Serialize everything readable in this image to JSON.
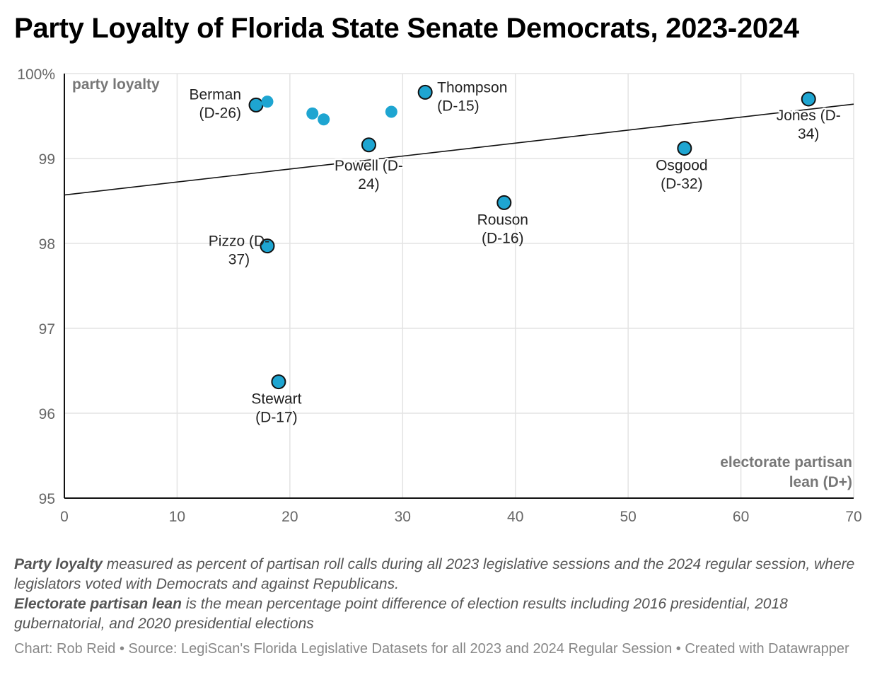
{
  "chart_data": {
    "type": "scatter",
    "title": "Party Loyalty of Florida State Senate Democrats, 2023-2024",
    "xlabel": "electorate partisan lean (D+)",
    "ylabel": "party loyalty",
    "xlim": [
      0,
      70
    ],
    "ylim": [
      95,
      100
    ],
    "x_ticks": [
      "0",
      "10",
      "20",
      "30",
      "40",
      "50",
      "60",
      "70"
    ],
    "y_ticks": [
      "95",
      "96",
      "97",
      "98",
      "99",
      "100%"
    ],
    "grid": true,
    "colors": {
      "point": "#1ea5d1",
      "outline": "#111111",
      "trend": "#111111",
      "grid": "#e3e3e3"
    },
    "points": [
      {
        "x": 17,
        "y": 99.63,
        "label": [
          "Berman",
          "(D-26)"
        ],
        "outlined": true
      },
      {
        "x": 18,
        "y": 99.67,
        "label": [],
        "outlined": false
      },
      {
        "x": 22,
        "y": 99.53,
        "label": [],
        "outlined": false
      },
      {
        "x": 23,
        "y": 99.46,
        "label": [],
        "outlined": false
      },
      {
        "x": 29,
        "y": 99.55,
        "label": [],
        "outlined": false
      },
      {
        "x": 32,
        "y": 99.78,
        "label": [
          "Thompson",
          "(D-15)"
        ],
        "outlined": true
      },
      {
        "x": 27,
        "y": 99.16,
        "label": [
          "Powell (D-",
          "24)"
        ],
        "outlined": true
      },
      {
        "x": 66,
        "y": 99.7,
        "label": [
          "Jones (D-",
          "34)"
        ],
        "outlined": true
      },
      {
        "x": 55,
        "y": 99.12,
        "label": [
          "Osgood",
          "(D-32)"
        ],
        "outlined": true
      },
      {
        "x": 39,
        "y": 98.48,
        "label": [
          "Rouson",
          "(D-16)"
        ],
        "outlined": true
      },
      {
        "x": 18,
        "y": 97.97,
        "label": [
          "Pizzo (D-",
          "37)"
        ],
        "outlined": true
      },
      {
        "x": 19,
        "y": 96.37,
        "label": [
          "Stewart",
          "(D-17)"
        ],
        "outlined": true
      }
    ],
    "trendline": {
      "x": [
        0,
        70
      ],
      "y": [
        98.57,
        99.64
      ]
    }
  },
  "notes": {
    "line1_bold": "Party loyalty",
    "line1_rest": " measured as percent of partisan roll calls during all 2023 legislative sessions and the 2024 regular session, where legislators voted with Democrats and against Republicans.",
    "line2_bold": "Electorate partisan lean",
    "line2_rest": " is the mean percentage point difference of election results including 2016 presidential, 2018 gubernatorial, and 2020 presidential elections"
  },
  "credit": "Chart: Rob Reid • Source: LegiScan's Florida Legislative Datasets for all 2023 and 2024 Regular Session • Created with Datawrapper"
}
